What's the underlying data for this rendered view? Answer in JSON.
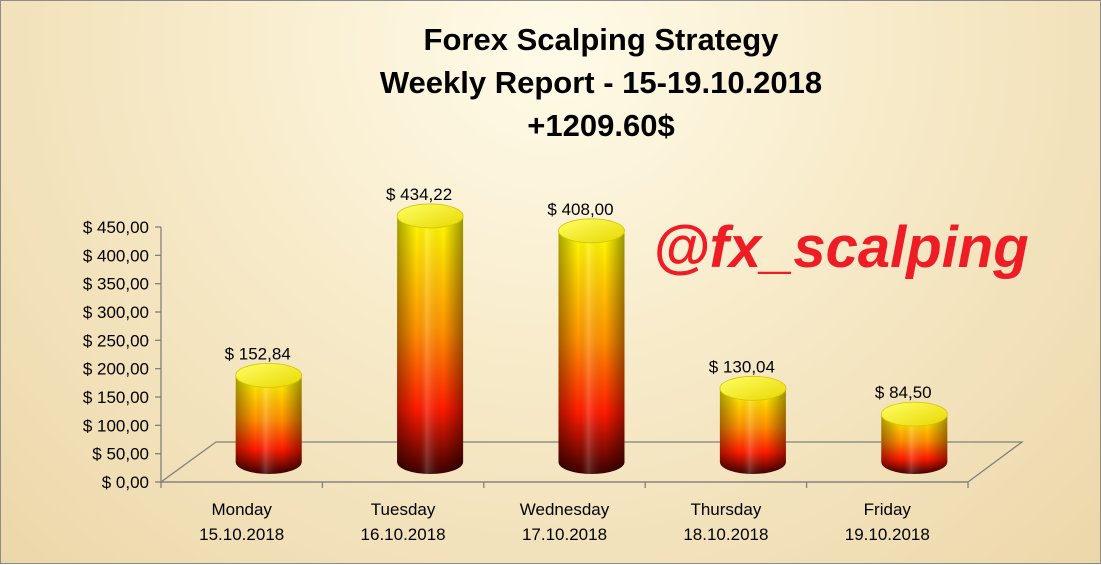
{
  "chart_data": {
    "type": "bar",
    "bar_shape": "cylinder-3d",
    "title": [
      "Forex Scalping Strategy",
      "Weekly Report - 15-19.10.2018",
      "+1209.60$"
    ],
    "categories": [
      [
        "Monday",
        "15.10.2018"
      ],
      [
        "Tuesday",
        "16.10.2018"
      ],
      [
        "Wednesday",
        "17.10.2018"
      ],
      [
        "Thursday",
        "18.10.2018"
      ],
      [
        "Friday",
        "19.10.2018"
      ]
    ],
    "values": [
      152.84,
      434.22,
      408.0,
      130.04,
      84.5
    ],
    "data_labels": [
      "$ 152,84",
      "$ 434,22",
      "$ 408,00",
      "$ 130,04",
      "$ 84,50"
    ],
    "ylim": [
      0,
      450
    ],
    "ytick_values": [
      0,
      50,
      100,
      150,
      200,
      250,
      300,
      350,
      400,
      450
    ],
    "ytick_labels": [
      "$ 0,00",
      "$ 50,00",
      "$ 100,00",
      "$ 150,00",
      "$ 200,00",
      "$ 250,00",
      "$ 300,00",
      "$ 350,00",
      "$ 400,00",
      "$ 450,00"
    ],
    "grid": false,
    "legend": "none",
    "watermark": "@fx_scalping",
    "colors": {
      "bar_top": "#ffff00",
      "bar_mid": "#ff1a00",
      "bar_bottom": "#3a0000",
      "watermark": "#ee1c24",
      "frame": "#8c8c8c",
      "axis": "#808080"
    }
  }
}
